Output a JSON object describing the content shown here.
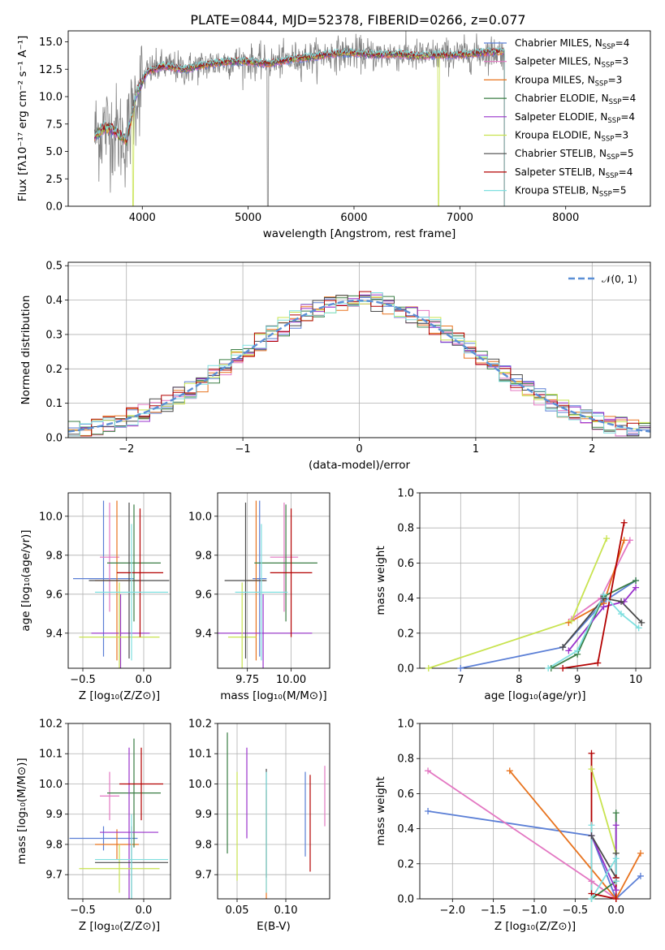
{
  "figure_title": "PLATE=0844, MJD=52378, FIBERID=0266, z=0.077",
  "colors": {
    "Chabrier MILES": "#5b7fd6",
    "Salpeter MILES": "#e377c2",
    "Kroupa MILES": "#e8731e",
    "Chabrier ELODIE": "#3a7d44",
    "Salpeter ELODIE": "#9932cc",
    "Kroupa ELODIE": "#c8e34f",
    "Chabrier STELIB": "#4a4a4a",
    "Salpeter STELIB": "#b30000",
    "Kroupa STELIB": "#7fdfdf",
    "data": "#808080",
    "gauss": "#5b8fd6"
  },
  "chart_data": [
    {
      "id": "spectrum",
      "type": "line",
      "xlabel": "wavelength [Angstrom, rest frame]",
      "ylabel": "Flux [fλ10⁻¹⁷ erg cm⁻² s⁻¹ A⁻¹]",
      "xlim": [
        3300,
        8800
      ],
      "ylim": [
        0,
        16
      ],
      "xticks": [
        "4000",
        "5000",
        "6000",
        "7000",
        "8000"
      ],
      "yticks": [
        "0.0",
        "2.5",
        "5.0",
        "7.5",
        "10.0",
        "12.5",
        "15.0"
      ],
      "legend_position": "right",
      "legend": [
        {
          "name": "Chabrier MILES",
          "nssp": "4"
        },
        {
          "name": "Salpeter MILES",
          "nssp": "3"
        },
        {
          "name": "Kroupa MILES",
          "nssp": "3"
        },
        {
          "name": "Chabrier ELODIE",
          "nssp": "4"
        },
        {
          "name": "Salpeter ELODIE",
          "nssp": "4"
        },
        {
          "name": "Kroupa ELODIE",
          "nssp": "3"
        },
        {
          "name": "Chabrier STELIB",
          "nssp": "5"
        },
        {
          "name": "Salpeter STELIB",
          "nssp": "4"
        },
        {
          "name": "Kroupa STELIB",
          "nssp": "5"
        }
      ],
      "nssp_prefix": "N",
      "nssp_sub": "SSP",
      "continuum": [
        [
          3550,
          6.5
        ],
        [
          3650,
          7.2
        ],
        [
          3750,
          6.8
        ],
        [
          3850,
          6.0
        ],
        [
          3950,
          10.5
        ],
        [
          4050,
          12.3
        ],
        [
          4200,
          12.8
        ],
        [
          4400,
          12.5
        ],
        [
          4600,
          12.9
        ],
        [
          4800,
          13.2
        ],
        [
          5000,
          13.2
        ],
        [
          5200,
          13.0
        ],
        [
          5400,
          13.4
        ],
        [
          5600,
          13.6
        ],
        [
          5800,
          13.9
        ],
        [
          6000,
          14.0
        ],
        [
          6200,
          13.8
        ],
        [
          6400,
          13.9
        ],
        [
          6600,
          13.7
        ],
        [
          6800,
          13.8
        ],
        [
          7000,
          13.8
        ],
        [
          7200,
          14.0
        ],
        [
          7400,
          14.1
        ]
      ]
    },
    {
      "id": "residuals",
      "type": "bar",
      "xlabel": "(data-model)/error",
      "ylabel": "Normed distribution",
      "xlim": [
        -2.5,
        2.5
      ],
      "ylim": [
        0,
        0.51
      ],
      "xticks": [
        "−2",
        "−1",
        "0",
        "1",
        "2"
      ],
      "yticks": [
        "0.0",
        "0.1",
        "0.2",
        "0.3",
        "0.4",
        "0.5"
      ],
      "legend_position": "top-right",
      "gauss_label": "𝒩(0, 1)",
      "bin_edges_start": -2.5,
      "bin_width": 0.1
    },
    {
      "id": "age-z",
      "type": "scatter",
      "xlabel": "Z [log₁₀(Z/Z⊙)]",
      "ylabel": "age  [log₁₀(age/yr)]",
      "xlim": [
        -0.62,
        0.22
      ],
      "ylim": [
        9.22,
        10.12
      ],
      "xticks": [
        "−0.5",
        "0.0"
      ],
      "yticks": [
        "9.4",
        "9.6",
        "9.8",
        "10.0"
      ],
      "series": [
        {
          "name": "Chabrier MILES",
          "x": -0.33,
          "y": 9.68,
          "xerr": 0.25,
          "yerr": 0.4
        },
        {
          "name": "Salpeter MILES",
          "x": -0.28,
          "y": 9.79,
          "xerr": 0.08,
          "yerr": 0.28
        },
        {
          "name": "Kroupa MILES",
          "x": -0.22,
          "y": 9.67,
          "xerr": 0.18,
          "yerr": 0.41
        },
        {
          "name": "Chabrier ELODIE",
          "x": -0.08,
          "y": 9.76,
          "xerr": 0.22,
          "yerr": 0.3
        },
        {
          "name": "Salpeter ELODIE",
          "x": -0.19,
          "y": 9.4,
          "xerr": 0.24,
          "yerr": 0.2
        },
        {
          "name": "Kroupa ELODIE",
          "x": -0.2,
          "y": 9.38,
          "xerr": 0.33,
          "yerr": 0.28
        },
        {
          "name": "Chabrier STELIB",
          "x": -0.12,
          "y": 9.67,
          "xerr": 0.33,
          "yerr": 0.4
        },
        {
          "name": "Salpeter STELIB",
          "x": -0.03,
          "y": 9.71,
          "xerr": 0.19,
          "yerr": 0.33
        },
        {
          "name": "Kroupa STELIB",
          "x": -0.1,
          "y": 9.61,
          "xerr": 0.3,
          "yerr": 0.35
        }
      ]
    },
    {
      "id": "age-mass",
      "type": "scatter",
      "xlabel": "mass [log₁₀(M/M⊙)]",
      "ylabel": "",
      "xlim": [
        9.58,
        10.22
      ],
      "ylim": [
        9.22,
        10.12
      ],
      "xticks": [
        "9.75",
        "10.00"
      ],
      "yticks": [
        "9.4",
        "9.6",
        "9.8",
        "10.0"
      ],
      "series": [
        {
          "name": "Chabrier MILES",
          "x": 9.82,
          "y": 9.68,
          "xerr": 0.04,
          "yerr": 0.4
        },
        {
          "name": "Salpeter MILES",
          "x": 9.96,
          "y": 9.79,
          "xerr": 0.08,
          "yerr": 0.28
        },
        {
          "name": "Kroupa MILES",
          "x": 9.8,
          "y": 9.67,
          "xerr": 0.05,
          "yerr": 0.41
        },
        {
          "name": "Chabrier ELODIE",
          "x": 9.97,
          "y": 9.76,
          "xerr": 0.18,
          "yerr": 0.3
        },
        {
          "name": "Salpeter ELODIE",
          "x": 9.84,
          "y": 9.4,
          "xerr": 0.28,
          "yerr": 0.2
        },
        {
          "name": "Kroupa ELODIE",
          "x": 9.72,
          "y": 9.38,
          "xerr": 0.08,
          "yerr": 0.28
        },
        {
          "name": "Chabrier STELIB",
          "x": 9.74,
          "y": 9.67,
          "xerr": 0.12,
          "yerr": 0.4
        },
        {
          "name": "Salpeter STELIB",
          "x": 10.0,
          "y": 9.71,
          "xerr": 0.12,
          "yerr": 0.33
        },
        {
          "name": "Kroupa STELIB",
          "x": 9.83,
          "y": 9.61,
          "xerr": 0.15,
          "yerr": 0.35
        }
      ]
    },
    {
      "id": "weight-age",
      "type": "line",
      "xlabel": "age  [log₁₀(age/yr)]",
      "ylabel": "mass weight",
      "xlim": [
        6.3,
        10.25
      ],
      "ylim": [
        0,
        1
      ],
      "xticks": [
        "7",
        "8",
        "9",
        "10"
      ],
      "yticks": [
        "0.0",
        "0.2",
        "0.4",
        "0.6",
        "0.8",
        "1.0"
      ],
      "series": [
        {
          "name": "Chabrier MILES",
          "x": [
            7.0,
            8.75,
            9.45,
            10.0
          ],
          "y": [
            0.0,
            0.12,
            0.38,
            0.5
          ]
        },
        {
          "name": "Salpeter MILES",
          "x": [
            8.9,
            9.4,
            9.9
          ],
          "y": [
            0.28,
            0.4,
            0.73
          ]
        },
        {
          "name": "Kroupa MILES",
          "x": [
            8.85,
            9.45,
            9.8
          ],
          "y": [
            0.26,
            0.37,
            0.73
          ]
        },
        {
          "name": "Chabrier ELODIE",
          "x": [
            8.55,
            9.0,
            9.45,
            10.0
          ],
          "y": [
            0.0,
            0.08,
            0.41,
            0.5
          ]
        },
        {
          "name": "Salpeter ELODIE",
          "x": [
            8.85,
            9.45,
            9.8,
            10.0
          ],
          "y": [
            0.1,
            0.35,
            0.38,
            0.46
          ]
        },
        {
          "name": "Kroupa ELODIE",
          "x": [
            6.45,
            8.9,
            9.5
          ],
          "y": [
            0.0,
            0.27,
            0.74
          ]
        },
        {
          "name": "Chabrier STELIB",
          "x": [
            8.75,
            9.45,
            9.75,
            10.1
          ],
          "y": [
            0.12,
            0.4,
            0.38,
            0.26
          ]
        },
        {
          "name": "Salpeter STELIB",
          "x": [
            8.75,
            9.35,
            9.8
          ],
          "y": [
            0.0,
            0.03,
            0.83
          ]
        },
        {
          "name": "Kroupa STELIB",
          "x": [
            8.5,
            9.0,
            9.45,
            9.75,
            10.05
          ],
          "y": [
            0.0,
            0.1,
            0.42,
            0.31,
            0.23
          ]
        }
      ]
    },
    {
      "id": "mass-z",
      "type": "scatter",
      "xlabel": "Z [log₁₀(Z/Z⊙)]",
      "ylabel": "mass [log₁₀(M/M⊙)]",
      "xlim": [
        -0.62,
        0.22
      ],
      "ylim": [
        9.62,
        10.2
      ],
      "xticks": [
        "−0.5",
        "0.0"
      ],
      "yticks": [
        "9.7",
        "9.8",
        "9.9",
        "10.0",
        "10.1",
        "10.2"
      ],
      "series": [
        {
          "name": "Chabrier MILES",
          "x": -0.33,
          "y": 9.82,
          "xerr": 0.28,
          "yerr": 0.04
        },
        {
          "name": "Salpeter MILES",
          "x": -0.28,
          "y": 9.96,
          "xerr": 0.08,
          "yerr": 0.08
        },
        {
          "name": "Kroupa MILES",
          "x": -0.22,
          "y": 9.8,
          "xerr": 0.18,
          "yerr": 0.05
        },
        {
          "name": "Chabrier ELODIE",
          "x": -0.08,
          "y": 9.97,
          "xerr": 0.22,
          "yerr": 0.18
        },
        {
          "name": "Salpeter ELODIE",
          "x": -0.12,
          "y": 9.84,
          "xerr": 0.24,
          "yerr": 0.28
        },
        {
          "name": "Kroupa ELODIE",
          "x": -0.2,
          "y": 9.72,
          "xerr": 0.33,
          "yerr": 0.08
        },
        {
          "name": "Chabrier STELIB",
          "x": -0.1,
          "y": 9.74,
          "xerr": 0.3,
          "yerr": 0.12
        },
        {
          "name": "Salpeter STELIB",
          "x": -0.02,
          "y": 10.0,
          "xerr": 0.18,
          "yerr": 0.12
        },
        {
          "name": "Kroupa STELIB",
          "x": -0.1,
          "y": 9.75,
          "xerr": 0.3,
          "yerr": 0.15
        }
      ]
    },
    {
      "id": "mass-ebv",
      "type": "scatter",
      "xlabel": "E(B-V)",
      "ylabel": "",
      "xlim": [
        0.03,
        0.145
      ],
      "ylim": [
        9.62,
        10.2
      ],
      "xticks": [
        "0.05",
        "0.10"
      ],
      "yticks": [
        "9.7",
        "9.8",
        "9.9",
        "10.0",
        "10.1",
        "10.2"
      ],
      "series": [
        {
          "name": "Chabrier MILES",
          "x": 0.12,
          "y": 9.9,
          "yerr": 0.14
        },
        {
          "name": "Salpeter MILES",
          "x": 0.14,
          "y": 9.96,
          "yerr": 0.1
        },
        {
          "name": "Kroupa MILES",
          "x": 0.08,
          "y": 9.8,
          "yerr": 0.18
        },
        {
          "name": "Chabrier ELODIE",
          "x": 0.04,
          "y": 9.97,
          "yerr": 0.2
        },
        {
          "name": "Salpeter ELODIE",
          "x": 0.06,
          "y": 9.97,
          "yerr": 0.15
        },
        {
          "name": "Kroupa ELODIE",
          "x": 0.05,
          "y": 9.86,
          "yerr": 0.18
        },
        {
          "name": "Chabrier STELIB",
          "x": 0.08,
          "y": 9.87,
          "yerr": 0.18
        },
        {
          "name": "Salpeter STELIB",
          "x": 0.125,
          "y": 9.87,
          "yerr": 0.16
        },
        {
          "name": "Kroupa STELIB",
          "x": 0.08,
          "y": 9.84,
          "yerr": 0.2
        }
      ]
    },
    {
      "id": "weight-z",
      "type": "line",
      "xlabel": "Z [log₁₀(Z/Z⊙)]",
      "ylabel": "mass weight",
      "xlim": [
        -2.4,
        0.42
      ],
      "ylim": [
        0,
        1
      ],
      "xticks": [
        "−2.0",
        "−1.5",
        "−1.0",
        "−0.5",
        "0.0"
      ],
      "yticks": [
        "0.0",
        "0.2",
        "0.4",
        "0.6",
        "0.8",
        "1.0"
      ],
      "series": [
        {
          "name": "Chabrier MILES",
          "x": [
            -2.3,
            -0.3,
            0.0,
            0.3
          ],
          "y": [
            0.5,
            0.36,
            0.0,
            0.13
          ]
        },
        {
          "name": "Salpeter MILES",
          "x": [
            -2.3,
            -0.3,
            0.0
          ],
          "y": [
            0.73,
            0.1,
            0.0
          ]
        },
        {
          "name": "Kroupa MILES",
          "x": [
            -1.3,
            0.0,
            0.3
          ],
          "y": [
            0.73,
            0.0,
            0.26
          ]
        },
        {
          "name": "Chabrier ELODIE",
          "x": [
            -0.3,
            0.0,
            0.0
          ],
          "y": [
            0.0,
            0.1,
            0.49
          ]
        },
        {
          "name": "Salpeter ELODIE",
          "x": [
            -0.3,
            0.0,
            0.0
          ],
          "y": [
            0.36,
            0.05,
            0.42
          ]
        },
        {
          "name": "Kroupa ELODIE",
          "x": [
            -0.3,
            0.0
          ],
          "y": [
            0.74,
            0.26
          ]
        },
        {
          "name": "Chabrier STELIB",
          "x": [
            -0.3,
            0.0,
            0.0
          ],
          "y": [
            0.36,
            0.12,
            0.26
          ]
        },
        {
          "name": "Salpeter STELIB",
          "x": [
            -0.3,
            -0.3,
            0.0,
            0.0
          ],
          "y": [
            0.83,
            0.03,
            0.0,
            0.12
          ]
        },
        {
          "name": "Kroupa STELIB",
          "x": [
            -0.3,
            -0.3,
            0.0,
            0.0
          ],
          "y": [
            0.42,
            0.0,
            0.23,
            0.1
          ]
        }
      ]
    }
  ]
}
